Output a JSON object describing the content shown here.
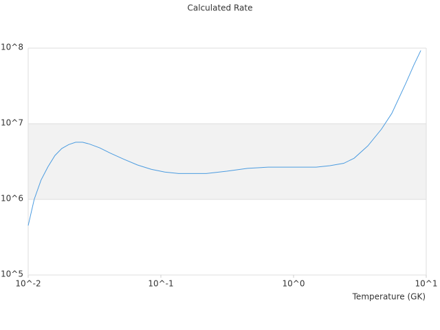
{
  "chart_data": {
    "type": "line",
    "title": "Calculated Rate",
    "x_label": "Temperature (GK)",
    "x": [
      0.01,
      0.0111,
      0.0125,
      0.0141,
      0.0159,
      0.0179,
      0.0202,
      0.0228,
      0.0257,
      0.0289,
      0.0346,
      0.0414,
      0.0525,
      0.0667,
      0.0846,
      0.107,
      0.136,
      0.173,
      0.22,
      0.314,
      0.45,
      0.643,
      0.92,
      1.48,
      1.88,
      2.39,
      2.86,
      3.63,
      4.6,
      5.5,
      7.0,
      8.07,
      9.1
    ],
    "values": [
      450000,
      1000000,
      1800000,
      2700000,
      3800000,
      4700000,
      5300000,
      5700000,
      5700000,
      5400000,
      4800000,
      4100000,
      3400000,
      2850000,
      2500000,
      2300000,
      2200000,
      2200000,
      2200000,
      2360000,
      2570000,
      2670000,
      2670000,
      2670000,
      2790000,
      3000000,
      3500000,
      5100000,
      8500000,
      13700000,
      34000000,
      60000000,
      93000000
    ],
    "color": "#4a9be0",
    "xlog": true,
    "ylog": true,
    "xlim": [
      0.01,
      10
    ],
    "ylim": [
      100000,
      100000000
    ],
    "xticks": [
      {
        "value": 0.01,
        "label": "10^-2"
      },
      {
        "value": 0.1,
        "label": "10^-1"
      },
      {
        "value": 1,
        "label": "10^0"
      },
      {
        "value": 10,
        "label": "10^1"
      }
    ],
    "yticks": [
      {
        "value": 100000,
        "label": "10^5"
      },
      {
        "value": 1000000,
        "label": "10^6"
      },
      {
        "value": 10000000,
        "label": "10^7"
      },
      {
        "value": 100000000,
        "label": "10^8"
      }
    ],
    "grid": true,
    "band_color": "#f2f2f2"
  }
}
